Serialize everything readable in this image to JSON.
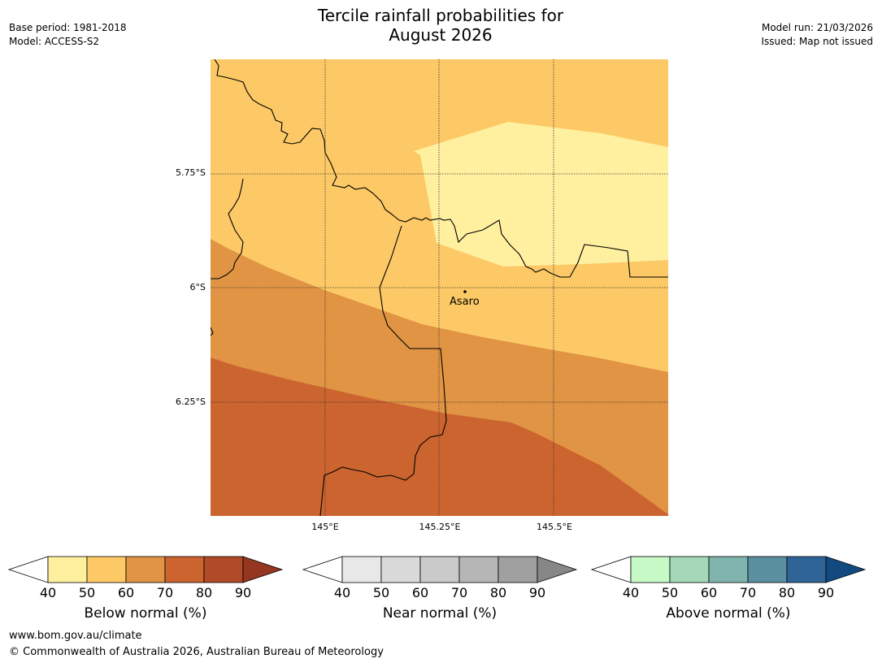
{
  "header": {
    "title_line1": "Tercile rainfall probabilities for",
    "title_line2": "August 2026",
    "base_period": "Base period: 1981-2018",
    "model": "Model: ACCESS-S2",
    "model_run": "Model run: 21/03/2026",
    "issued": "Issued: Map not issued"
  },
  "map": {
    "place_label": "Asaro",
    "lat_labels": [
      "5.75°S",
      "6°S",
      "6.25°S"
    ],
    "lon_labels": [
      "145°E",
      "145.25°E",
      "145.5°E"
    ]
  },
  "legends": [
    {
      "title": "Below normal (%)",
      "ticks": [
        "40",
        "50",
        "60",
        "70",
        "80",
        "90"
      ],
      "colors": [
        "#fff0a0",
        "#fdc966",
        "#e09444",
        "#cc6430",
        "#b04a28",
        "#943620"
      ],
      "under": "#ffffff"
    },
    {
      "title": "Near normal (%)",
      "ticks": [
        "40",
        "50",
        "60",
        "70",
        "80",
        "90"
      ],
      "colors": [
        "#e8e8e8",
        "#dadada",
        "#cacaca",
        "#b6b6b6",
        "#a0a0a0",
        "#878787"
      ],
      "under": "#ffffff"
    },
    {
      "title": "Above normal (%)",
      "ticks": [
        "40",
        "50",
        "60",
        "70",
        "80",
        "90"
      ],
      "colors": [
        "#c8fac8",
        "#a4d8b8",
        "#80b4ae",
        "#5a90a0",
        "#2f6496",
        "#124a80"
      ],
      "under": "#ffffff"
    }
  ],
  "footer": {
    "url": "www.bom.gov.au/climate",
    "copyright": "© Commonwealth of Australia 2026, Australian Bureau of Meteorology"
  }
}
